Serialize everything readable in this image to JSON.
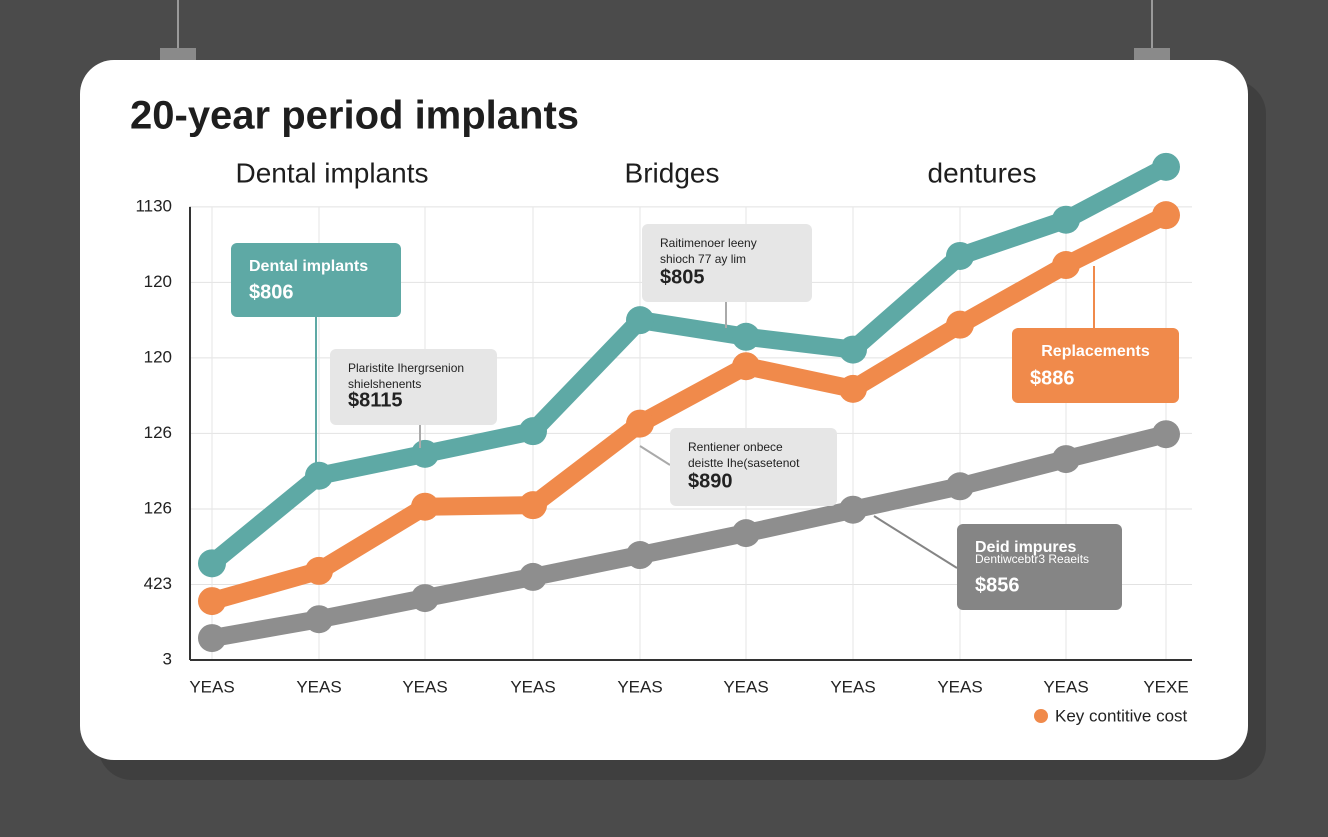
{
  "chart_data": {
    "type": "line",
    "title": "20-year period implants",
    "categories": [
      "YEAS",
      "YEAS",
      "YEAS",
      "YEAS",
      "YEAS",
      "YEAS",
      "YEAS",
      "YEAS",
      "YEAS",
      "YEXE"
    ],
    "series": [
      {
        "name": "Dental implants",
        "color": "#5ea9a5",
        "values": [
          1.28,
          2.44,
          2.73,
          3.03,
          4.5,
          4.28,
          4.11,
          5.35,
          5.83,
          6.53
        ]
      },
      {
        "name": "Bridges",
        "color": "#f08a4b",
        "values": [
          0.78,
          1.18,
          2.03,
          2.05,
          3.13,
          3.89,
          3.59,
          4.44,
          5.23,
          5.89
        ]
      },
      {
        "name": "dentures",
        "color": "#8e8e8e",
        "values": [
          0.29,
          0.54,
          0.82,
          1.1,
          1.39,
          1.68,
          1.99,
          2.3,
          2.66,
          2.99
        ]
      }
    ],
    "ylim": [
      0,
      6.7
    ],
    "yticks": [
      {
        "value": 0,
        "label": "3"
      },
      {
        "value": 1,
        "label": "423"
      },
      {
        "value": 2,
        "label": "126"
      },
      {
        "value": 3,
        "label": "126"
      },
      {
        "value": 4,
        "label": "120"
      },
      {
        "value": 5,
        "label": "120"
      },
      {
        "value": 6,
        "label": "1130"
      }
    ],
    "grid": true,
    "annotations": [
      {
        "lines": [
          "Dental implants"
        ],
        "value": "$806",
        "color": "#5ea9a5"
      },
      {
        "lines": [
          "Plaristite Ihergrsenion",
          "shielshenents"
        ],
        "value": "$8115",
        "color": "#e6e6e6"
      },
      {
        "lines": [
          "Raitimenoer leeny",
          "shioch 77 ay lim"
        ],
        "value": "$805",
        "color": "#e6e6e6"
      },
      {
        "lines": [
          "Rentiener onbece",
          "deistte Ihe(sasetenot"
        ],
        "value": "$890",
        "color": "#e6e6e6"
      },
      {
        "lines": [
          "Replacements"
        ],
        "value": "$886",
        "color": "#f08a4b"
      },
      {
        "lines": [
          "Deid impures",
          "Dentiwcebtr3 Reaeits"
        ],
        "value": "$856",
        "color": "#858585"
      }
    ],
    "legend_note": {
      "text": "Key contitive cost",
      "color": "#f08a4b"
    }
  }
}
